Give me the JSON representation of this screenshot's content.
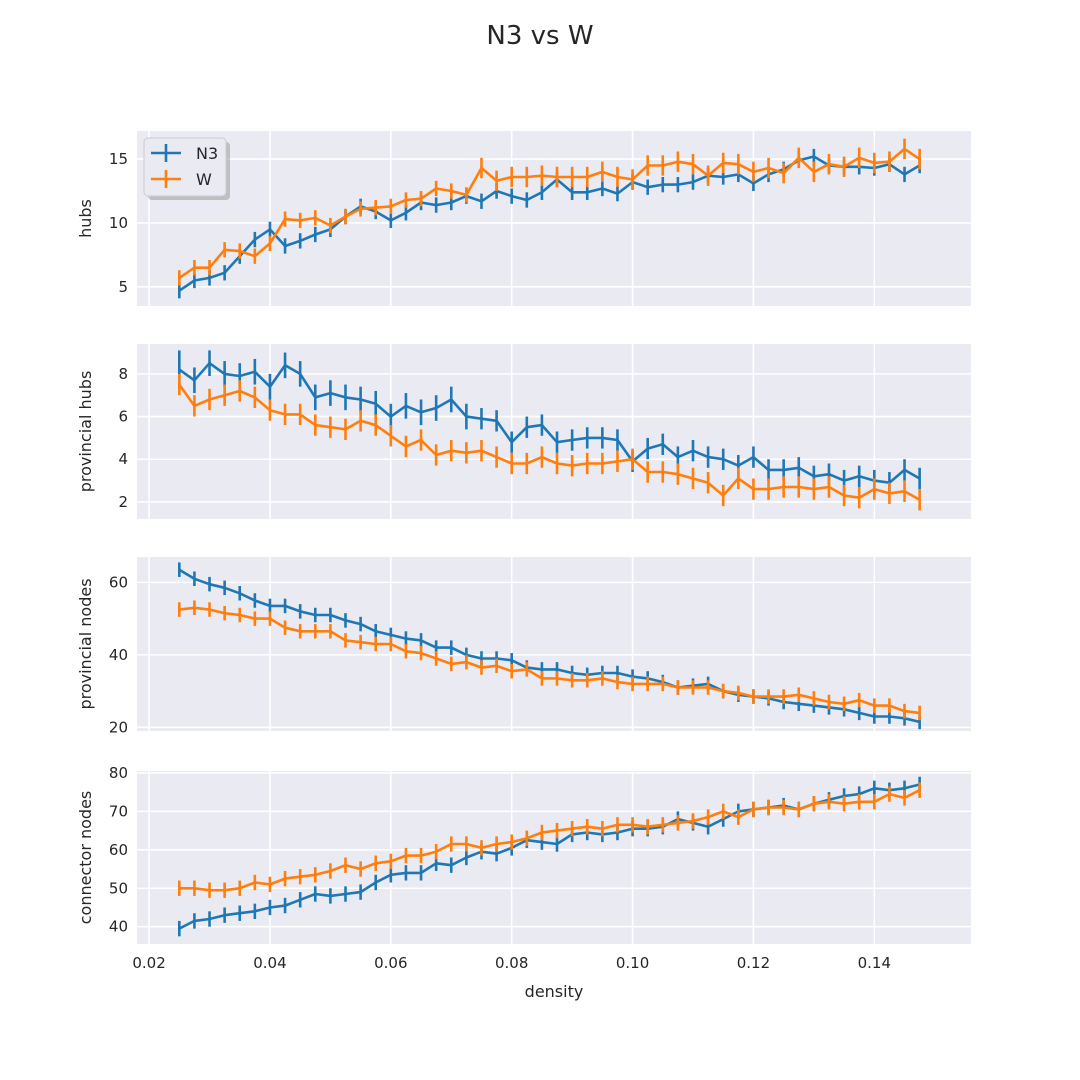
{
  "title": "N3 vs W",
  "xlabel": "density",
  "colors": {
    "N3": "#1f77b4",
    "W": "#ff7f0e",
    "panel_bg": "#eaeaf2",
    "grid": "#ffffff"
  },
  "legend": {
    "placement": "upper-left of first panel",
    "entries": [
      "N3",
      "W"
    ]
  },
  "chart_data": [
    {
      "type": "line",
      "ylabel": "hubs",
      "xlim": [
        0.018,
        0.156
      ],
      "ylim": [
        3.5,
        17.2
      ],
      "xticks": [
        0.02,
        0.04,
        0.06,
        0.08,
        0.1,
        0.12,
        0.14
      ],
      "xtick_labels": [
        "0.02",
        "0.04",
        "0.06",
        "0.08",
        "0.10",
        "0.12",
        "0.14"
      ],
      "yticks": [
        5,
        10,
        15
      ],
      "ytick_labels": [
        "5",
        "10",
        "15"
      ],
      "show_xtick_labels": false,
      "grid": true,
      "x_start": 0.025,
      "x_step": 0.0025,
      "series": [
        {
          "name": "N3",
          "values": [
            4.7,
            5.5,
            5.7,
            6.1,
            7.4,
            8.7,
            9.5,
            8.2,
            8.6,
            9.1,
            9.5,
            10.5,
            11.3,
            10.9,
            10.2,
            10.8,
            11.6,
            11.4,
            11.6,
            12.1,
            11.7,
            12.5,
            12.1,
            11.8,
            12.4,
            13.4,
            12.4,
            12.4,
            12.7,
            12.3,
            13.2,
            12.8,
            13.0,
            13.0,
            13.2,
            13.7,
            13.6,
            13.8,
            13.1,
            13.8,
            14.2,
            14.9,
            15.2,
            14.5,
            14.4,
            14.4,
            14.3,
            14.6,
            13.8,
            14.5
          ],
          "err": [
            0.6,
            0.6,
            0.6,
            0.6,
            0.6,
            0.6,
            0.6,
            0.6,
            0.6,
            0.6,
            0.6,
            0.6,
            0.6,
            0.6,
            0.6,
            0.6,
            0.6,
            0.6,
            0.6,
            0.6,
            0.6,
            0.6,
            0.6,
            0.6,
            0.6,
            0.6,
            0.6,
            0.6,
            0.6,
            0.6,
            0.6,
            0.6,
            0.6,
            0.6,
            0.6,
            0.6,
            0.6,
            0.6,
            0.6,
            0.6,
            0.6,
            0.6,
            0.6,
            0.6,
            0.6,
            0.6,
            0.6,
            0.6,
            0.6,
            0.6
          ]
        },
        {
          "name": "W",
          "values": [
            5.7,
            6.5,
            6.5,
            7.9,
            7.8,
            7.4,
            8.4,
            10.3,
            10.2,
            10.4,
            9.8,
            10.5,
            11.1,
            11.2,
            11.3,
            11.8,
            11.9,
            12.7,
            12.5,
            12.2,
            14.3,
            13.3,
            13.6,
            13.6,
            13.7,
            13.6,
            13.6,
            13.6,
            14.0,
            13.6,
            13.4,
            14.5,
            14.5,
            14.8,
            14.6,
            13.7,
            14.7,
            14.6,
            14.0,
            14.3,
            13.9,
            15.1,
            14.0,
            14.6,
            14.4,
            15.1,
            14.7,
            14.8,
            15.8,
            15.0
          ],
          "err": [
            0.6,
            0.6,
            0.6,
            0.6,
            0.6,
            0.6,
            0.6,
            0.6,
            0.6,
            0.6,
            0.6,
            0.6,
            0.6,
            0.6,
            0.6,
            0.6,
            0.6,
            0.6,
            0.6,
            0.6,
            0.8,
            0.8,
            0.8,
            0.8,
            0.8,
            0.8,
            0.8,
            0.8,
            0.8,
            0.8,
            0.8,
            0.8,
            0.8,
            0.8,
            0.8,
            0.8,
            0.8,
            0.8,
            0.8,
            0.8,
            0.8,
            0.8,
            0.8,
            0.8,
            0.8,
            0.8,
            0.8,
            0.8,
            0.8,
            0.8
          ]
        }
      ]
    },
    {
      "type": "line",
      "ylabel": "provincial hubs",
      "xlim": [
        0.018,
        0.156
      ],
      "ylim": [
        1.2,
        9.4
      ],
      "xticks": [
        0.02,
        0.04,
        0.06,
        0.08,
        0.1,
        0.12,
        0.14
      ],
      "xtick_labels": [
        "0.02",
        "0.04",
        "0.06",
        "0.08",
        "0.10",
        "0.12",
        "0.14"
      ],
      "yticks": [
        2,
        4,
        6,
        8
      ],
      "ytick_labels": [
        "2",
        "4",
        "6",
        "8"
      ],
      "show_xtick_labels": false,
      "grid": true,
      "x_start": 0.025,
      "x_step": 0.0025,
      "series": [
        {
          "name": "N3",
          "values": [
            8.2,
            7.7,
            8.5,
            8.0,
            7.9,
            8.1,
            7.4,
            8.4,
            8.0,
            6.9,
            7.1,
            6.9,
            6.8,
            6.6,
            6.0,
            6.5,
            6.2,
            6.4,
            6.8,
            6.0,
            5.9,
            5.8,
            4.8,
            5.5,
            5.6,
            4.8,
            4.9,
            5.0,
            5.0,
            4.9,
            3.9,
            4.5,
            4.7,
            4.1,
            4.4,
            4.1,
            4.0,
            3.7,
            4.1,
            3.5,
            3.5,
            3.6,
            3.2,
            3.3,
            3.0,
            3.2,
            3.0,
            2.9,
            3.5,
            3.1
          ],
          "err": [
            0.9,
            0.6,
            0.6,
            0.6,
            0.6,
            0.6,
            0.6,
            0.6,
            0.6,
            0.6,
            0.6,
            0.6,
            0.6,
            0.6,
            0.6,
            0.6,
            0.6,
            0.6,
            0.6,
            0.6,
            0.5,
            0.5,
            0.5,
            0.5,
            0.5,
            0.5,
            0.5,
            0.5,
            0.5,
            0.5,
            0.5,
            0.5,
            0.5,
            0.5,
            0.5,
            0.5,
            0.5,
            0.5,
            0.5,
            0.5,
            0.5,
            0.5,
            0.5,
            0.5,
            0.5,
            0.5,
            0.5,
            0.5,
            0.5,
            0.5
          ]
        },
        {
          "name": "W",
          "values": [
            7.5,
            6.5,
            6.8,
            7.0,
            7.2,
            6.9,
            6.3,
            6.1,
            6.1,
            5.6,
            5.5,
            5.4,
            5.8,
            5.6,
            5.1,
            4.6,
            4.9,
            4.2,
            4.4,
            4.3,
            4.4,
            4.1,
            3.8,
            3.8,
            4.1,
            3.8,
            3.7,
            3.8,
            3.8,
            3.9,
            4.0,
            3.4,
            3.4,
            3.3,
            3.1,
            2.9,
            2.3,
            3.1,
            2.6,
            2.6,
            2.7,
            2.7,
            2.6,
            2.7,
            2.3,
            2.2,
            2.6,
            2.4,
            2.5,
            2.1
          ],
          "err": [
            0.5,
            0.5,
            0.5,
            0.5,
            0.5,
            0.5,
            0.5,
            0.5,
            0.5,
            0.5,
            0.5,
            0.5,
            0.5,
            0.5,
            0.5,
            0.5,
            0.5,
            0.5,
            0.5,
            0.5,
            0.5,
            0.5,
            0.5,
            0.5,
            0.5,
            0.5,
            0.5,
            0.5,
            0.5,
            0.5,
            0.5,
            0.5,
            0.5,
            0.5,
            0.5,
            0.5,
            0.5,
            0.5,
            0.5,
            0.5,
            0.5,
            0.5,
            0.5,
            0.5,
            0.5,
            0.5,
            0.5,
            0.5,
            0.5,
            0.5
          ]
        }
      ]
    },
    {
      "type": "line",
      "ylabel": "provincial nodes",
      "xlim": [
        0.018,
        0.156
      ],
      "ylim": [
        19,
        67
      ],
      "xticks": [
        0.02,
        0.04,
        0.06,
        0.08,
        0.1,
        0.12,
        0.14
      ],
      "xtick_labels": [
        "0.02",
        "0.04",
        "0.06",
        "0.08",
        "0.10",
        "0.12",
        "0.14"
      ],
      "yticks": [
        20,
        40,
        60
      ],
      "ytick_labels": [
        "20",
        "40",
        "60"
      ],
      "show_xtick_labels": false,
      "grid": true,
      "x_start": 0.025,
      "x_step": 0.0025,
      "series": [
        {
          "name": "N3",
          "values": [
            63.5,
            61.0,
            59.5,
            58.5,
            57.0,
            55.0,
            53.5,
            53.5,
            52.0,
            51.0,
            51.0,
            49.5,
            48.5,
            46.5,
            45.5,
            44.5,
            44.0,
            42.0,
            42.0,
            40.0,
            39.0,
            39.0,
            38.5,
            36.5,
            36.0,
            36.0,
            35.0,
            34.5,
            35.0,
            35.0,
            34.0,
            33.5,
            32.5,
            31.0,
            31.5,
            32.0,
            30.0,
            29.0,
            28.5,
            28.0,
            27.0,
            26.5,
            26.0,
            25.5,
            25.0,
            24.0,
            23.0,
            23.0,
            22.5,
            21.5
          ],
          "err": [
            2.0,
            2.0,
            2.0,
            2.0,
            2.0,
            2.0,
            2.0,
            2.0,
            2.0,
            2.0,
            2.0,
            2.0,
            2.0,
            2.0,
            2.0,
            2.0,
            2.0,
            2.0,
            2.0,
            2.0,
            2.0,
            2.0,
            2.0,
            2.0,
            2.0,
            2.0,
            2.0,
            2.0,
            2.0,
            2.0,
            2.0,
            2.0,
            2.0,
            2.0,
            2.0,
            2.0,
            2.0,
            2.0,
            2.0,
            2.0,
            2.0,
            2.0,
            2.0,
            2.0,
            2.0,
            2.0,
            2.0,
            2.0,
            2.0,
            2.0
          ]
        },
        {
          "name": "W",
          "values": [
            52.5,
            53.0,
            52.5,
            51.5,
            51.0,
            50.0,
            50.0,
            47.5,
            46.5,
            46.5,
            46.5,
            44.0,
            43.5,
            43.0,
            43.0,
            41.0,
            40.5,
            39.0,
            37.5,
            38.0,
            36.5,
            37.0,
            35.5,
            36.0,
            33.5,
            33.5,
            33.0,
            33.0,
            33.5,
            32.5,
            32.0,
            32.0,
            32.0,
            31.0,
            31.0,
            31.0,
            30.0,
            29.5,
            28.5,
            28.5,
            28.5,
            29.0,
            28.0,
            27.0,
            26.5,
            27.5,
            26.0,
            26.0,
            24.5,
            24.0
          ],
          "err": [
            2.0,
            2.0,
            2.0,
            2.0,
            2.0,
            2.0,
            2.0,
            2.0,
            2.0,
            2.0,
            2.0,
            2.0,
            2.0,
            2.0,
            2.0,
            2.0,
            2.0,
            2.0,
            2.0,
            2.0,
            2.0,
            2.0,
            2.0,
            2.0,
            2.0,
            2.0,
            2.0,
            2.0,
            2.0,
            2.0,
            2.0,
            2.0,
            2.0,
            2.0,
            2.0,
            2.0,
            2.0,
            2.0,
            2.0,
            2.0,
            2.0,
            2.0,
            2.0,
            2.0,
            2.0,
            2.0,
            2.0,
            2.0,
            2.0,
            2.0
          ]
        }
      ]
    },
    {
      "type": "line",
      "ylabel": "connector nodes",
      "xlim": [
        0.018,
        0.156
      ],
      "ylim": [
        35.5,
        80.5
      ],
      "xticks": [
        0.02,
        0.04,
        0.06,
        0.08,
        0.1,
        0.12,
        0.14
      ],
      "xtick_labels": [
        "0.02",
        "0.04",
        "0.06",
        "0.08",
        "0.10",
        "0.12",
        "0.14"
      ],
      "yticks": [
        40,
        50,
        60,
        70,
        80
      ],
      "ytick_labels": [
        "40",
        "50",
        "60",
        "70",
        "80"
      ],
      "show_xtick_labels": true,
      "grid": true,
      "x_start": 0.025,
      "x_step": 0.0025,
      "series": [
        {
          "name": "N3",
          "values": [
            39.5,
            41.5,
            42.0,
            43.0,
            43.5,
            44.0,
            45.0,
            45.5,
            47.0,
            48.5,
            48.0,
            48.5,
            49.0,
            51.5,
            53.5,
            54.0,
            54.0,
            56.5,
            56.0,
            58.0,
            59.5,
            59.0,
            60.5,
            62.5,
            62.0,
            61.5,
            64.0,
            64.5,
            64.0,
            64.5,
            65.5,
            65.5,
            66.0,
            68.0,
            67.0,
            66.0,
            68.0,
            70.0,
            70.5,
            71.0,
            71.5,
            70.5,
            72.0,
            73.0,
            74.0,
            74.5,
            76.0,
            75.5,
            76.0,
            77.0
          ],
          "err": [
            2.0,
            2.0,
            2.0,
            2.0,
            2.0,
            2.0,
            2.0,
            2.0,
            2.0,
            2.0,
            2.0,
            2.0,
            2.0,
            2.0,
            2.0,
            2.0,
            2.0,
            2.0,
            2.0,
            2.0,
            2.0,
            2.0,
            2.0,
            2.0,
            2.0,
            2.0,
            2.0,
            2.0,
            2.0,
            2.0,
            2.0,
            2.0,
            2.0,
            2.0,
            2.0,
            2.0,
            2.0,
            2.0,
            2.0,
            2.0,
            2.0,
            2.0,
            2.0,
            2.0,
            2.0,
            2.0,
            2.0,
            2.0,
            2.0,
            2.0
          ]
        },
        {
          "name": "W",
          "values": [
            50.0,
            50.0,
            49.5,
            49.5,
            50.0,
            51.5,
            51.0,
            52.5,
            53.0,
            53.5,
            54.5,
            56.0,
            55.0,
            56.5,
            57.0,
            58.5,
            58.5,
            59.5,
            61.5,
            61.5,
            60.5,
            61.5,
            62.0,
            63.0,
            64.5,
            65.0,
            65.5,
            66.0,
            65.5,
            66.5,
            66.5,
            66.0,
            66.5,
            67.0,
            67.5,
            68.5,
            70.0,
            68.5,
            70.5,
            71.0,
            71.0,
            70.5,
            72.0,
            72.5,
            72.0,
            72.5,
            72.5,
            74.5,
            73.5,
            75.5
          ],
          "err": [
            2.0,
            2.0,
            2.0,
            2.0,
            2.0,
            2.0,
            2.0,
            2.0,
            2.0,
            2.0,
            2.0,
            2.0,
            2.0,
            2.0,
            2.0,
            2.0,
            2.0,
            2.0,
            2.0,
            2.0,
            2.0,
            2.0,
            2.0,
            2.0,
            2.0,
            2.0,
            2.0,
            2.0,
            2.0,
            2.0,
            2.0,
            2.0,
            2.0,
            2.0,
            2.0,
            2.0,
            2.0,
            2.0,
            2.0,
            2.0,
            2.0,
            2.0,
            2.0,
            2.0,
            2.0,
            2.0,
            2.0,
            2.0,
            2.0,
            2.0
          ]
        }
      ]
    }
  ]
}
